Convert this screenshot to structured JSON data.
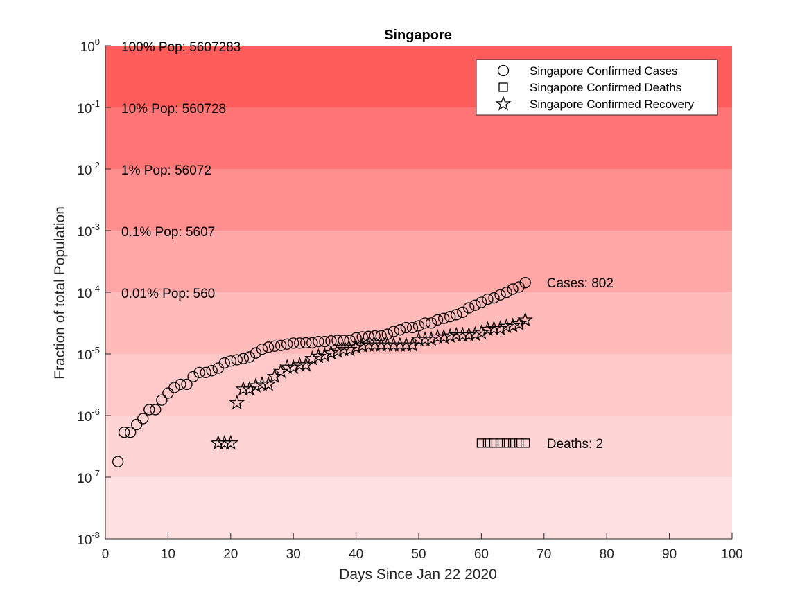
{
  "chart_data": {
    "type": "scatter",
    "title": "Singapore",
    "xlabel": "Days Since Jan 22 2020",
    "ylabel": "Fraction of total Population",
    "xlim": [
      0,
      100
    ],
    "ylim_log10": [
      -8,
      0
    ],
    "x_ticks": [
      0,
      10,
      20,
      30,
      40,
      50,
      60,
      70,
      80,
      90,
      100
    ],
    "y_ticks": [
      {
        "base": "10",
        "exp": "0",
        "value": 1
      },
      {
        "base": "10",
        "exp": "-1",
        "value": 0.1
      },
      {
        "base": "10",
        "exp": "-2",
        "value": 0.01
      },
      {
        "base": "10",
        "exp": "-3",
        "value": 0.001
      },
      {
        "base": "10",
        "exp": "-4",
        "value": 0.0001
      },
      {
        "base": "10",
        "exp": "-5",
        "value": 1e-05
      },
      {
        "base": "10",
        "exp": "-6",
        "value": 1e-06
      },
      {
        "base": "10",
        "exp": "-7",
        "value": 1e-07
      },
      {
        "base": "10",
        "exp": "-8",
        "value": 1e-08
      }
    ],
    "population": 5607283,
    "bands": [
      {
        "lower": 0.1,
        "upper": 1,
        "color": "#ff5c5c"
      },
      {
        "lower": 0.01,
        "upper": 0.1,
        "color": "#ff7575"
      },
      {
        "lower": 0.001,
        "upper": 0.01,
        "color": "#ff8f8f"
      },
      {
        "lower": 0.0001,
        "upper": 0.001,
        "color": "#ffa6a6"
      },
      {
        "lower": 1e-05,
        "upper": 0.0001,
        "color": "#ffbaba"
      },
      {
        "lower": 1e-06,
        "upper": 1e-05,
        "color": "#ffc9c9"
      },
      {
        "lower": 1e-07,
        "upper": 1e-06,
        "color": "#ffd4d4"
      },
      {
        "lower": 1e-08,
        "upper": 1e-07,
        "color": "#ffe0e0"
      }
    ],
    "band_labels": [
      {
        "text": "100% Pop: 5607283",
        "value": 1
      },
      {
        "text": "10% Pop: 560728",
        "value": 0.1
      },
      {
        "text": "1% Pop: 56072",
        "value": 0.01
      },
      {
        "text": "0.1% Pop: 5607",
        "value": 0.001
      },
      {
        "text": "0.01% Pop: 560",
        "value": 0.0001
      }
    ],
    "series": [
      {
        "name": "Singapore Confirmed Cases",
        "marker": "circle",
        "x": [
          2,
          3,
          4,
          5,
          6,
          7,
          8,
          9,
          10,
          11,
          12,
          13,
          14,
          15,
          16,
          17,
          18,
          19,
          20,
          21,
          22,
          23,
          24,
          25,
          26,
          27,
          28,
          29,
          30,
          31,
          32,
          33,
          34,
          35,
          36,
          37,
          38,
          39,
          40,
          41,
          42,
          43,
          44,
          45,
          46,
          47,
          48,
          49,
          50,
          51,
          52,
          53,
          54,
          55,
          56,
          57,
          58,
          59,
          60,
          61,
          62,
          63,
          64,
          65,
          66,
          67
        ],
        "values": [
          1,
          3,
          3,
          4,
          5,
          7,
          7,
          10,
          13,
          16,
          18,
          18,
          24,
          28,
          28,
          30,
          33,
          40,
          43,
          45,
          47,
          50,
          58,
          67,
          72,
          75,
          77,
          81,
          84,
          84,
          85,
          85,
          89,
          89,
          91,
          93,
          93,
          93,
          102,
          106,
          108,
          110,
          110,
          117,
          130,
          138,
          150,
          150,
          160,
          178,
          178,
          200,
          212,
          226,
          243,
          266,
          313,
          345,
          385,
          432,
          455,
          509,
          558,
          631,
          683,
          802
        ]
      },
      {
        "name": "Singapore Confirmed Deaths",
        "marker": "square",
        "x": [
          60,
          61,
          62,
          63,
          64,
          65,
          66,
          67
        ],
        "values": [
          2,
          2,
          2,
          2,
          2,
          2,
          2,
          2
        ]
      },
      {
        "name": "Singapore Confirmed Recovery",
        "marker": "star",
        "x": [
          18,
          19,
          20,
          21,
          22,
          23,
          24,
          25,
          26,
          27,
          28,
          29,
          30,
          31,
          32,
          33,
          34,
          35,
          36,
          37,
          38,
          39,
          40,
          41,
          42,
          43,
          44,
          45,
          46,
          47,
          48,
          49,
          50,
          51,
          52,
          53,
          54,
          55,
          56,
          57,
          58,
          59,
          60,
          61,
          62,
          63,
          64,
          65,
          66,
          67
        ],
        "values": [
          2,
          2,
          2,
          9,
          15,
          15,
          17,
          18,
          18,
          24,
          29,
          34,
          34,
          37,
          37,
          47,
          51,
          53,
          58,
          62,
          66,
          66,
          72,
          76,
          78,
          78,
          78,
          78,
          78,
          78,
          78,
          78,
          96,
          96,
          97,
          105,
          105,
          109,
          114,
          114,
          114,
          117,
          124,
          140,
          144,
          144,
          156,
          160,
          172,
          198
        ]
      }
    ],
    "annotations": [
      {
        "text": "Cases: 802",
        "x": 70,
        "value": 0.000143
      },
      {
        "text": "Deaths: 2",
        "x": 70,
        "value": 3.57e-07
      }
    ],
    "legend_position": "top-right",
    "grid": false
  }
}
